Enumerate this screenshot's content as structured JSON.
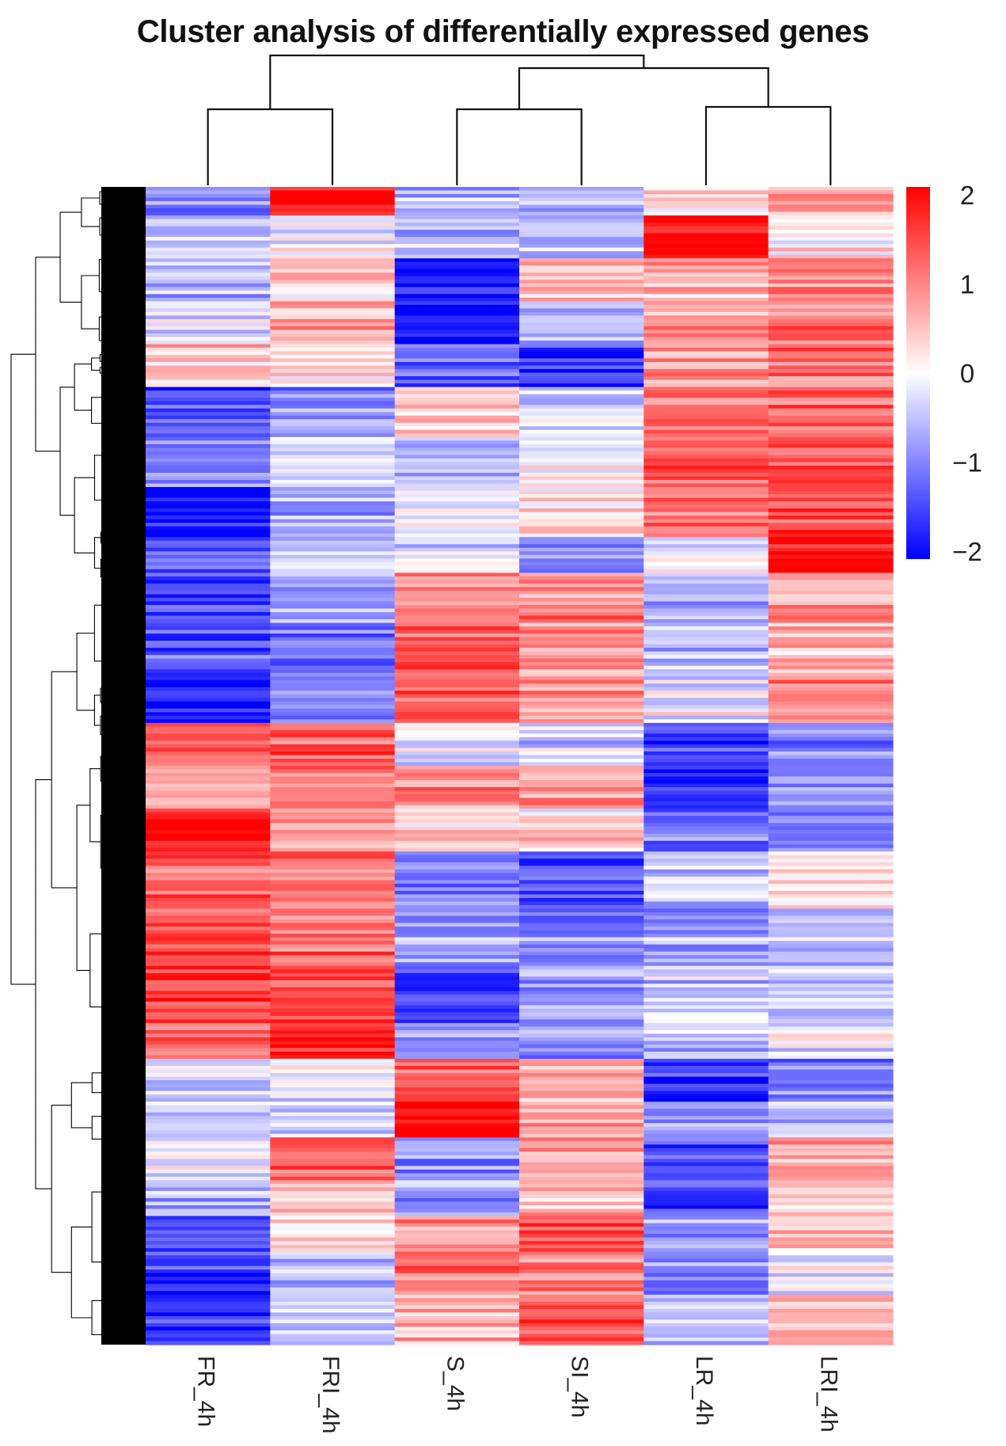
{
  "chart_data": {
    "type": "heatmap",
    "title": "Cluster analysis of differentially expressed genes",
    "columns": [
      "FR_4h",
      "FRI_4h",
      "S_4h",
      "SI_4h",
      "LR_4h",
      "LRI_4h"
    ],
    "column_dendrogram": "((FR_4h,FRI_4h),((S_4h,SI_4h),(LR_4h,LRI_4h)))",
    "row_dendrogram": "dense hierarchical clustering of genes (shown at left)",
    "color_scale": {
      "min": -2,
      "max": 2,
      "ticks": [
        "2",
        "1",
        "0",
        "−1",
        "−2"
      ],
      "low_color": "#0000ff",
      "mid_color": "#ffffff",
      "high_color": "#ff0000"
    },
    "row_blocks": [
      {
        "rows": 8,
        "values": [
          -1.0,
          1.9,
          -0.6,
          -0.7,
          0.3,
          0.8
        ]
      },
      {
        "rows": 12,
        "values": [
          -0.5,
          -0.1,
          -0.5,
          -0.6,
          2.0,
          0.1
        ]
      },
      {
        "rows": 12,
        "values": [
          -0.6,
          0.4,
          -1.7,
          0.5,
          0.6,
          0.9
        ]
      },
      {
        "rows": 12,
        "values": [
          -0.3,
          0.6,
          -2.0,
          -0.6,
          0.7,
          1.0
        ]
      },
      {
        "rows": 12,
        "values": [
          0.5,
          0.2,
          -1.2,
          -1.6,
          0.8,
          1.1
        ]
      },
      {
        "rows": 14,
        "values": [
          -1.4,
          -0.9,
          0.4,
          -0.4,
          1.1,
          1.2
        ]
      },
      {
        "rows": 14,
        "values": [
          -1.0,
          -0.2,
          -0.6,
          -0.1,
          1.2,
          1.3
        ]
      },
      {
        "rows": 14,
        "values": [
          -2.0,
          -0.6,
          -0.1,
          0.3,
          1.0,
          1.4
        ]
      },
      {
        "rows": 10,
        "values": [
          -1.3,
          -0.4,
          -0.3,
          -0.8,
          -0.1,
          1.9
        ]
      },
      {
        "rows": 14,
        "values": [
          -1.4,
          -0.7,
          0.9,
          1.0,
          -0.6,
          0.9
        ]
      },
      {
        "rows": 14,
        "values": [
          -1.2,
          -1.0,
          1.4,
          0.9,
          -0.4,
          0.7
        ]
      },
      {
        "rows": 14,
        "values": [
          -1.8,
          -1.1,
          1.2,
          0.8,
          -0.1,
          0.9
        ]
      },
      {
        "rows": 12,
        "values": [
          1.1,
          1.3,
          -0.3,
          -0.4,
          -1.5,
          -1.0
        ]
      },
      {
        "rows": 12,
        "values": [
          0.6,
          1.0,
          0.9,
          0.8,
          -1.9,
          -1.0
        ]
      },
      {
        "rows": 12,
        "values": [
          2.0,
          0.8,
          0.3,
          0.3,
          -1.0,
          -1.1
        ]
      },
      {
        "rows": 16,
        "values": [
          1.2,
          1.0,
          -1.0,
          -1.3,
          -0.5,
          0.3
        ]
      },
      {
        "rows": 16,
        "values": [
          1.3,
          1.1,
          -0.7,
          -0.9,
          -0.7,
          -0.4
        ]
      },
      {
        "rows": 16,
        "values": [
          1.4,
          1.4,
          -1.7,
          -0.8,
          -0.4,
          -0.6
        ]
      },
      {
        "rows": 10,
        "values": [
          1.1,
          1.8,
          -1.0,
          -0.9,
          -0.6,
          -0.2
        ]
      },
      {
        "rows": 12,
        "values": [
          -0.4,
          -0.2,
          1.3,
          0.5,
          -1.6,
          -1.0
        ]
      },
      {
        "rows": 10,
        "values": [
          -0.5,
          -0.3,
          2.0,
          0.7,
          -0.9,
          -0.5
        ]
      },
      {
        "rows": 12,
        "values": [
          -0.2,
          1.3,
          -0.9,
          0.6,
          -1.4,
          0.8
        ]
      },
      {
        "rows": 10,
        "values": [
          -0.5,
          0.5,
          -0.8,
          0.5,
          -1.6,
          0.2
        ]
      },
      {
        "rows": 10,
        "values": [
          -1.5,
          0.2,
          0.9,
          1.4,
          -0.7,
          0.6
        ]
      },
      {
        "rows": 12,
        "values": [
          -1.6,
          -0.5,
          1.0,
          1.0,
          -0.9,
          -0.1
        ]
      },
      {
        "rows": 14,
        "values": [
          -1.7,
          -0.3,
          0.6,
          1.3,
          -0.4,
          0.6
        ]
      }
    ]
  }
}
